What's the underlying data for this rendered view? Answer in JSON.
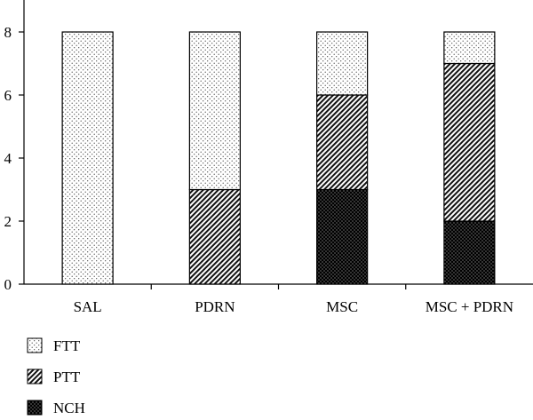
{
  "chart_data": {
    "type": "bar",
    "stacked": true,
    "categories": [
      "SAL",
      "PDRN",
      "MSC",
      "MSC + PDRN"
    ],
    "series": [
      {
        "name": "NCH",
        "values": [
          0,
          0,
          3,
          2
        ],
        "pattern": "dense-dots"
      },
      {
        "name": "PTT",
        "values": [
          0,
          3,
          3,
          5
        ],
        "pattern": "diagonal-hatch"
      },
      {
        "name": "FTT",
        "values": [
          8,
          5,
          2,
          1
        ],
        "pattern": "sparse-dots"
      }
    ],
    "legend_order": [
      "FTT",
      "PTT",
      "NCH"
    ],
    "y_ticks": [
      "0",
      "2",
      "4",
      "6",
      "8"
    ],
    "ylim": [
      0,
      8.9
    ],
    "title": "",
    "xlabel": "",
    "ylabel": "",
    "grid": false,
    "legend_position": "bottom-left"
  }
}
